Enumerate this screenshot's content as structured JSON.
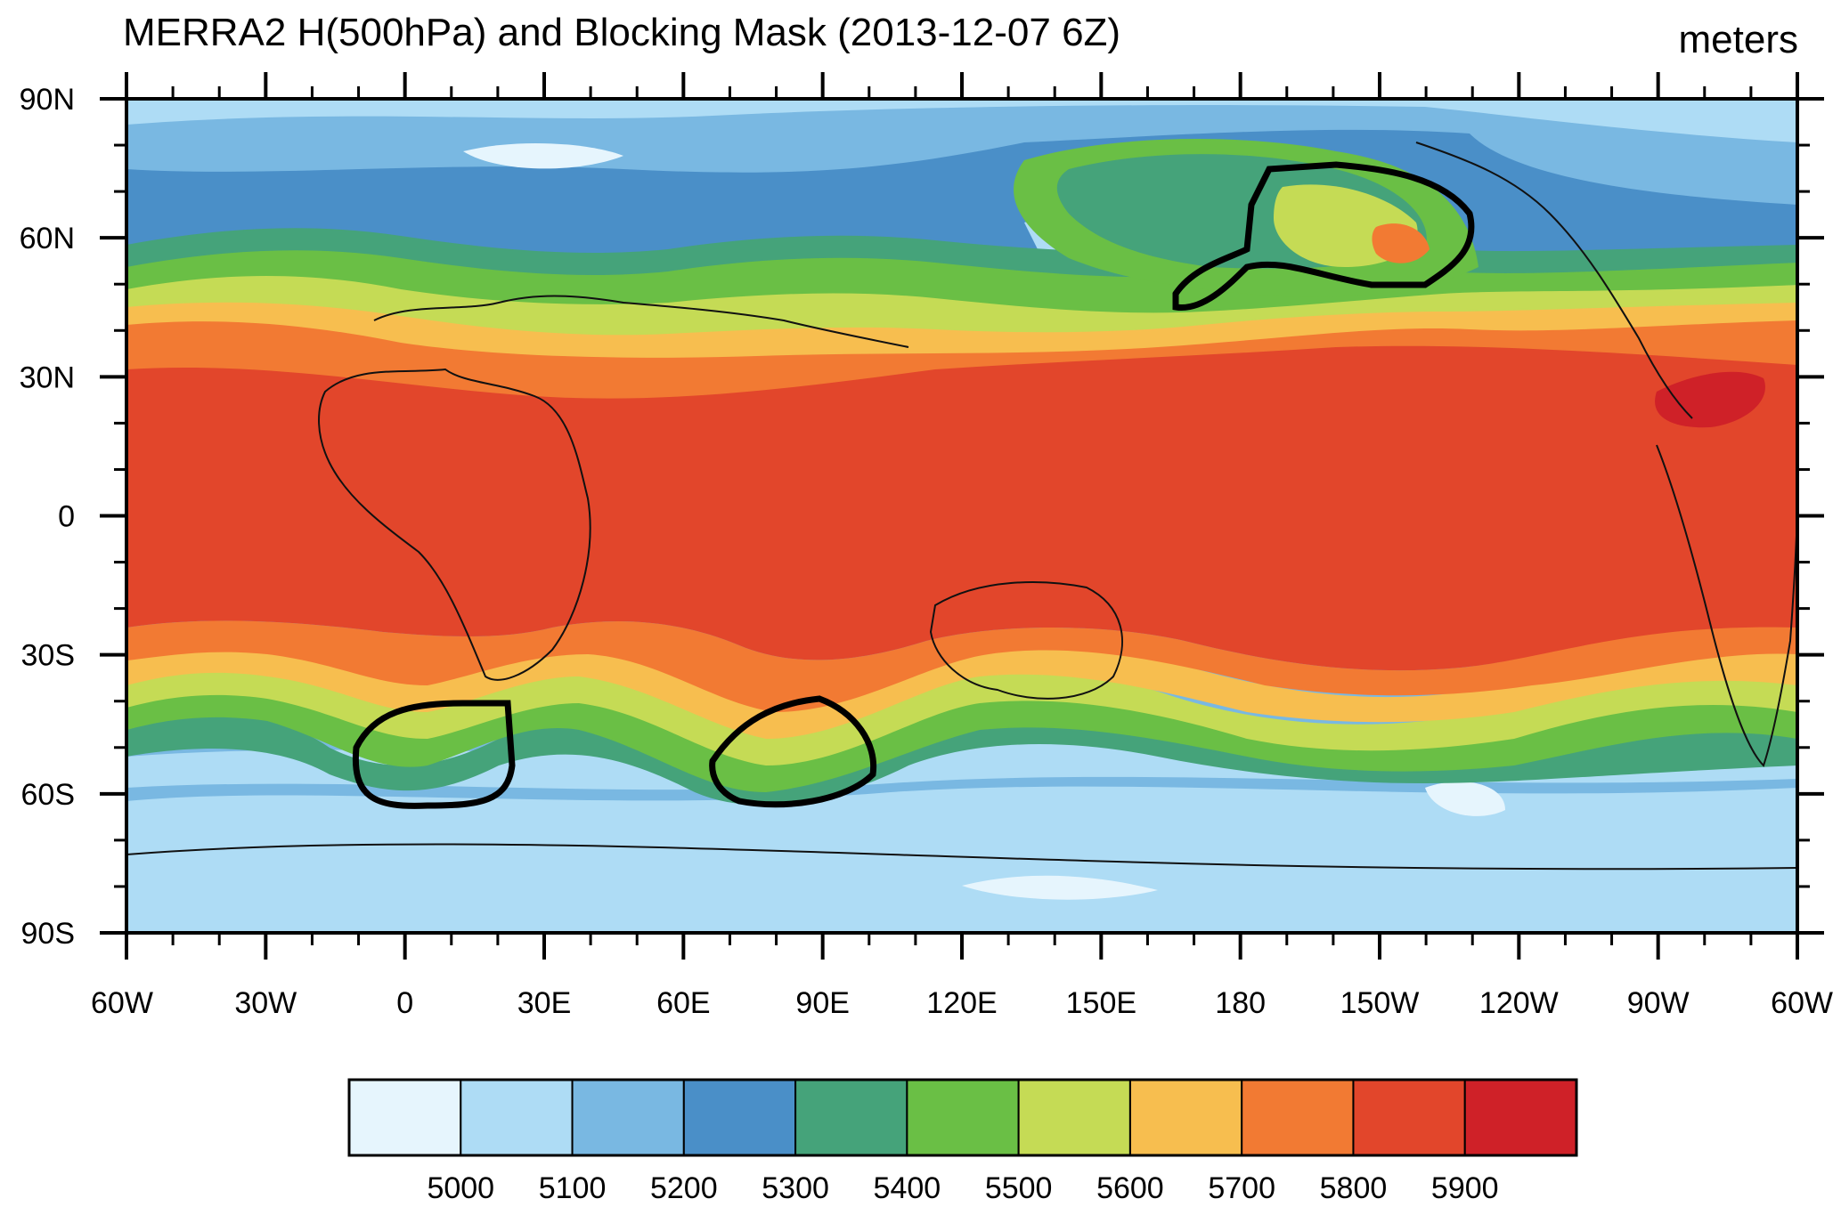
{
  "title": "MERRA2 H(500hPa) and Blocking Mask (2013-12-07 6Z)",
  "units": "meters",
  "lat_ticks": [
    {
      "label": "90N",
      "value": 90
    },
    {
      "label": "60N",
      "value": 60
    },
    {
      "label": "30N",
      "value": 30
    },
    {
      "label": "0",
      "value": 0
    },
    {
      "label": "30S",
      "value": -30
    },
    {
      "label": "60S",
      "value": -60
    },
    {
      "label": "90S",
      "value": -90
    }
  ],
  "lon_ticks": [
    {
      "label": "60W",
      "value": -60
    },
    {
      "label": "30W",
      "value": -30
    },
    {
      "label": "0",
      "value": 0
    },
    {
      "label": "30E",
      "value": 30
    },
    {
      "label": "60E",
      "value": 60
    },
    {
      "label": "90E",
      "value": 90
    },
    {
      "label": "120E",
      "value": 120
    },
    {
      "label": "150E",
      "value": 150
    },
    {
      "label": "180",
      "value": 180
    },
    {
      "label": "150W",
      "value": 210
    },
    {
      "label": "120W",
      "value": 240
    },
    {
      "label": "90W",
      "value": 270
    },
    {
      "label": "60W",
      "value": 300
    }
  ],
  "colorbar": {
    "colors": [
      "#e6f5fd",
      "#aedcf5",
      "#79b8e2",
      "#4a8fc8",
      "#45a37a",
      "#6abf45",
      "#c5db55",
      "#f7be4f",
      "#f27a33",
      "#e2462b",
      "#cf2128"
    ],
    "labels": [
      "5000",
      "5100",
      "5200",
      "5300",
      "5400",
      "5500",
      "5600",
      "5700",
      "5800",
      "5900"
    ]
  },
  "layers": {
    "sh_blue": "#79b8e2",
    "light_blue": "#aedcf5",
    "pale": "#e6f5fd",
    "deep_blue": "#4a8fc8",
    "teal": "#45a37a",
    "green": "#6abf45",
    "yellow": "#c5db55",
    "orange_yellow": "#f7be4f",
    "orange": "#f27a33",
    "red": "#e2462b",
    "dark_red": "#cf2128",
    "mask": "#000000",
    "coast": "#111111"
  }
}
